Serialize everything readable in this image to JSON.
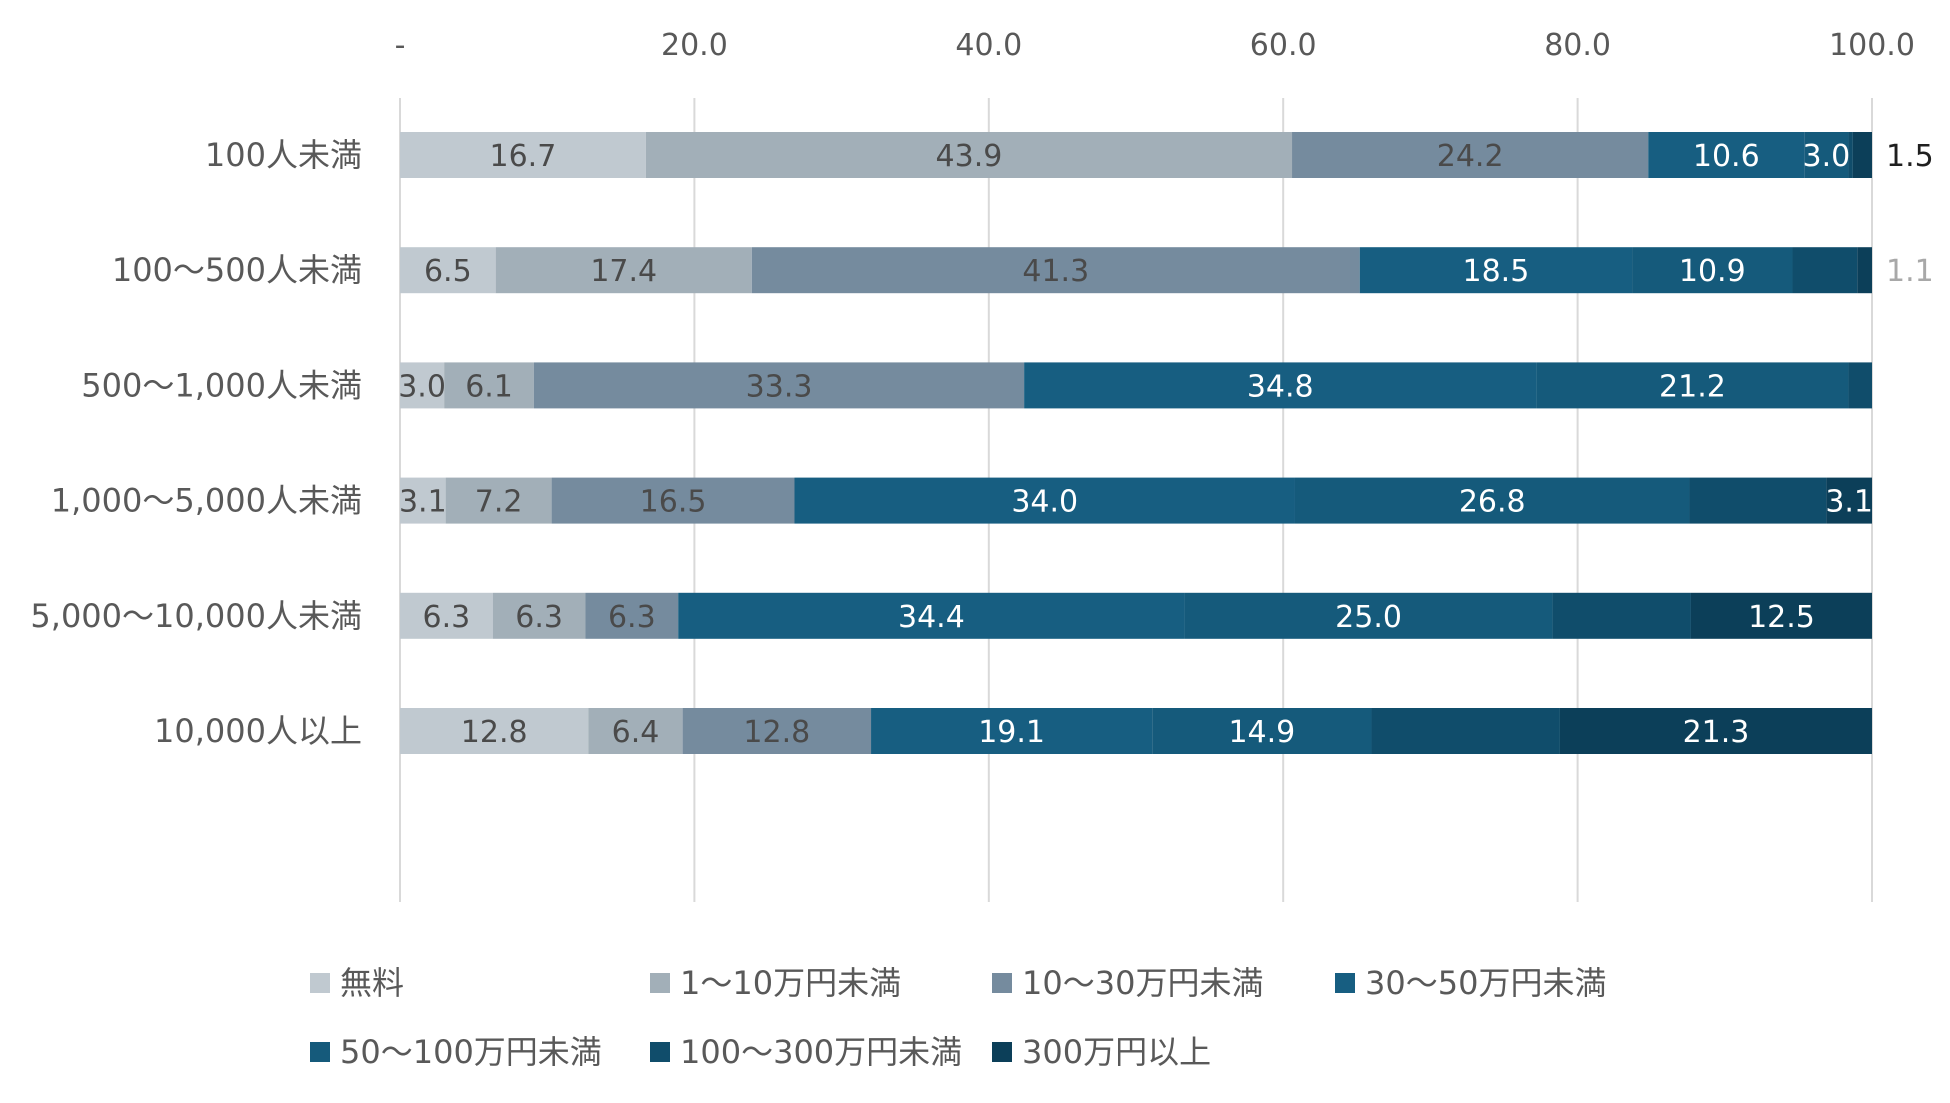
{
  "chart_data": {
    "type": "bar",
    "orientation": "horizontal",
    "stacked": true,
    "title": "",
    "xlabel": "",
    "ylabel": "",
    "xlim": [
      0,
      100
    ],
    "x_ticks": [
      0,
      20,
      40,
      60,
      80,
      100
    ],
    "x_tick_labels": [
      "-",
      "20.0",
      "40.0",
      "60.0",
      "80.0",
      "100.0"
    ],
    "grid": "vertical",
    "legend_position": "bottom",
    "categories": [
      "100人未満",
      "100〜500人未満",
      "500〜1,000人未満",
      "1,000〜5,000人未満",
      "5,000〜10,000人未満",
      "10,000人以上"
    ],
    "series": [
      {
        "name": "無料",
        "color": "#c0c9d0",
        "label_color": "#4a4a4a",
        "values": [
          16.7,
          6.5,
          3.0,
          3.1,
          6.3,
          12.8
        ]
      },
      {
        "name": "1〜10万円未満",
        "color": "#a2afb8",
        "label_color": "#4a4a4a",
        "values": [
          43.9,
          17.4,
          6.1,
          7.2,
          6.3,
          6.4
        ]
      },
      {
        "name": "10〜30万円未満",
        "color": "#758b9e",
        "label_color": "#4a4a4a",
        "values": [
          24.2,
          41.3,
          33.3,
          16.5,
          6.3,
          12.8
        ]
      },
      {
        "name": "30〜50万円未満",
        "color": "#175e81",
        "label_color": "#ffffff",
        "values": [
          10.6,
          18.5,
          34.8,
          34.0,
          34.4,
          19.1
        ]
      },
      {
        "name": "50〜100万円未満",
        "color": "#155a7b",
        "label_color": "#ffffff",
        "values": [
          3.0,
          10.9,
          21.2,
          26.8,
          25.0,
          14.9
        ]
      },
      {
        "name": "100〜300万円未満",
        "color": "#104d6b",
        "label_color": "#ffffff",
        "values": [
          0.3,
          4.4,
          1.6,
          9.3,
          9.4,
          12.8
        ]
      },
      {
        "name": "300万円以上",
        "color": "#0c3f59",
        "label_color": "#ffffff",
        "values": [
          1.5,
          1.1,
          0.0,
          3.1,
          12.5,
          21.3
        ]
      }
    ],
    "data_labels": [
      [
        "16.7",
        "43.9",
        "24.2",
        "10.6",
        "3.0",
        "",
        "1.5"
      ],
      [
        "6.5",
        "17.4",
        "41.3",
        "18.5",
        "10.9",
        "",
        "1.1"
      ],
      [
        "3.0",
        "6.1",
        "33.3",
        "34.8",
        "21.2",
        "",
        ""
      ],
      [
        "3.1",
        "7.2",
        "16.5",
        "34.0",
        "26.8",
        "",
        "3.1"
      ],
      [
        "6.3",
        "6.3",
        "6.3",
        "34.4",
        "25.0",
        "",
        "12.5"
      ],
      [
        "12.8",
        "6.4",
        "12.8",
        "19.1",
        "14.9",
        "",
        "21.3"
      ]
    ],
    "outside_labels": [
      {
        "row": 0,
        "series": 6,
        "text": "1.5",
        "color": "#1f1f1f"
      },
      {
        "row": 1,
        "series": 6,
        "text": "1.1",
        "color": "#a8a8a8"
      }
    ]
  }
}
